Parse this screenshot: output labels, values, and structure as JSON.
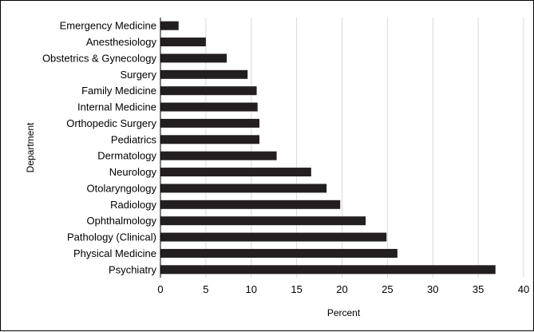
{
  "chart_data": {
    "type": "bar",
    "orientation": "horizontal",
    "categories": [
      "Emergency Medicine",
      "Anesthesiology",
      "Obstetrics & Gynecology",
      "Surgery",
      "Family Medicine",
      "Internal Medicine",
      "Orthopedic Surgery",
      "Pediatrics",
      "Dermatology",
      "Neurology",
      "Otolaryngology",
      "Radiology",
      "Ophthalmology",
      "Pathology (Clinical)",
      "Physical Medicine",
      "Psychiatry"
    ],
    "values": [
      2.0,
      5.0,
      7.3,
      9.6,
      10.6,
      10.7,
      10.9,
      10.9,
      12.8,
      16.6,
      18.3,
      19.8,
      22.6,
      24.9,
      26.1,
      36.9
    ],
    "title": "",
    "xlabel": "Percent",
    "ylabel": "Department",
    "xlim": [
      0,
      40
    ],
    "xticks": [
      0,
      5,
      10,
      15,
      20,
      25,
      30,
      35,
      40
    ],
    "grid": true,
    "legend": "none",
    "bar_color": "#231f20",
    "grid_color": "#d9d9d9"
  }
}
